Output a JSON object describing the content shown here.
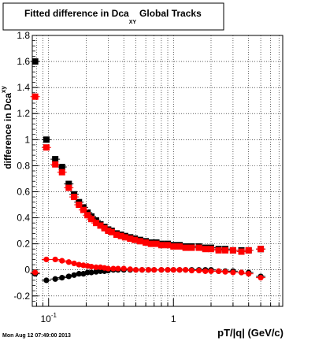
{
  "chart_data": {
    "type": "scatter",
    "title": "Fitted difference in Dca",
    "title_sub": "XY",
    "title_suffix": "Global Tracks",
    "ylabel": "difference in Dca",
    "ylabel_sub": "xy",
    "xlabel": "pT/|q| (GeV/c)",
    "x_scale": "log",
    "xlim": [
      0.074,
      7.5
    ],
    "ylim": [
      -0.28,
      1.8
    ],
    "grid": true,
    "legend": "none",
    "x_tick_labels": [
      {
        "x": 0.1,
        "base": "10",
        "exp": "-1"
      },
      {
        "x": 1,
        "base": "1",
        "exp": ""
      }
    ],
    "y_ticks": [
      -0.2,
      0,
      0.2,
      0.4,
      0.6,
      0.8,
      1,
      1.2,
      1.4,
      1.6,
      1.8
    ],
    "y_tick_labels": [
      "-0.2",
      "0",
      "0.2",
      "0.4",
      "0.6",
      "0.8",
      "1",
      "1.2",
      "1.4",
      "1.6",
      "1.8"
    ],
    "series": [
      {
        "marker": "square",
        "color": "#000000",
        "x": [
          0.078,
          0.096,
          0.113,
          0.128,
          0.145,
          0.16,
          0.175,
          0.19,
          0.205,
          0.22,
          0.24,
          0.26,
          0.28,
          0.3,
          0.32,
          0.35,
          0.38,
          0.41,
          0.45,
          0.49,
          0.54,
          0.6,
          0.66,
          0.73,
          0.8,
          0.9,
          1.0,
          1.12,
          1.25,
          1.4,
          1.6,
          1.8,
          2.0,
          2.3,
          2.6,
          3.0,
          3.5,
          4.0,
          5.0
        ],
        "y": [
          1.6,
          1.0,
          0.85,
          0.79,
          0.66,
          0.58,
          0.52,
          0.48,
          0.44,
          0.41,
          0.38,
          0.35,
          0.33,
          0.31,
          0.3,
          0.28,
          0.27,
          0.26,
          0.25,
          0.24,
          0.23,
          0.22,
          0.21,
          0.21,
          0.2,
          0.2,
          0.19,
          0.19,
          0.18,
          0.18,
          0.18,
          0.17,
          0.17,
          0.16,
          0.16,
          0.15,
          0.15,
          0.15,
          0.16
        ]
      },
      {
        "marker": "square",
        "color": "#ff0000",
        "x": [
          0.078,
          0.096,
          0.113,
          0.128,
          0.145,
          0.16,
          0.175,
          0.19,
          0.205,
          0.22,
          0.24,
          0.26,
          0.28,
          0.3,
          0.32,
          0.35,
          0.38,
          0.41,
          0.45,
          0.49,
          0.54,
          0.6,
          0.66,
          0.73,
          0.8,
          0.9,
          1.0,
          1.12,
          1.25,
          1.4,
          1.6,
          1.8,
          2.0,
          2.3,
          2.6,
          3.0,
          3.5,
          4.0,
          5.0
        ],
        "y": [
          1.33,
          0.94,
          0.81,
          0.75,
          0.63,
          0.56,
          0.5,
          0.46,
          0.42,
          0.39,
          0.36,
          0.34,
          0.32,
          0.3,
          0.29,
          0.27,
          0.26,
          0.25,
          0.24,
          0.23,
          0.22,
          0.21,
          0.2,
          0.2,
          0.19,
          0.19,
          0.18,
          0.18,
          0.17,
          0.17,
          0.17,
          0.16,
          0.16,
          0.15,
          0.15,
          0.15,
          0.14,
          0.15,
          0.16
        ]
      },
      {
        "marker": "circle",
        "color": "#000000",
        "x": [
          0.078,
          0.096,
          0.113,
          0.128,
          0.145,
          0.16,
          0.175,
          0.19,
          0.205,
          0.22,
          0.24,
          0.26,
          0.28,
          0.3,
          0.33,
          0.36,
          0.4,
          0.45,
          0.5,
          0.56,
          0.63,
          0.7,
          0.8,
          0.9,
          1.0,
          1.12,
          1.25,
          1.4,
          1.6,
          1.8,
          2.0,
          2.3,
          2.6,
          3.0,
          3.5,
          4.0,
          5.0
        ],
        "y": [
          -0.03,
          -0.08,
          -0.07,
          -0.06,
          -0.05,
          -0.04,
          -0.03,
          -0.03,
          -0.02,
          -0.02,
          -0.015,
          -0.01,
          -0.01,
          -0.005,
          0,
          0,
          0,
          0,
          0,
          0,
          0,
          0,
          0,
          0,
          0,
          0,
          0,
          0,
          0,
          0,
          0,
          -0.01,
          -0.01,
          -0.01,
          -0.02,
          -0.02,
          -0.05
        ]
      },
      {
        "marker": "circle",
        "color": "#ff0000",
        "x": [
          0.078,
          0.096,
          0.113,
          0.128,
          0.145,
          0.16,
          0.175,
          0.19,
          0.205,
          0.22,
          0.24,
          0.26,
          0.28,
          0.3,
          0.33,
          0.36,
          0.4,
          0.45,
          0.5,
          0.56,
          0.63,
          0.7,
          0.8,
          0.9,
          1.0,
          1.12,
          1.25,
          1.4,
          1.6,
          1.8,
          2.0,
          2.3,
          2.6,
          3.0,
          3.5,
          4.0,
          5.0
        ],
        "y": [
          -0.02,
          0.08,
          0.08,
          0.07,
          0.06,
          0.05,
          0.04,
          0.035,
          0.03,
          0.025,
          0.02,
          0.02,
          0.015,
          0.01,
          0.01,
          0.01,
          0.01,
          0.005,
          0,
          0,
          0,
          0,
          0,
          0,
          0,
          0,
          0,
          -0.005,
          -0.005,
          -0.01,
          -0.01,
          -0.01,
          -0.015,
          -0.02,
          -0.02,
          -0.03,
          -0.06
        ]
      }
    ]
  },
  "footer": {
    "timestamp": "Mon Aug 12 07:49:00 2013"
  }
}
